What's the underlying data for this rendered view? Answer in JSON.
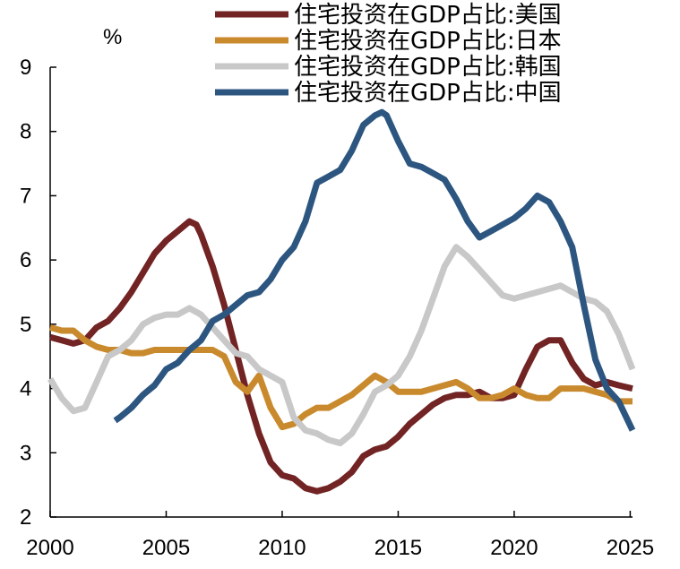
{
  "chart_data": {
    "type": "line",
    "unit": "%",
    "xlim": [
      2000,
      2025.1
    ],
    "ylim": [
      2,
      9
    ],
    "x_ticks": [
      2000,
      2005,
      2010,
      2015,
      2020,
      2025
    ],
    "y_ticks": [
      2,
      3,
      4,
      5,
      6,
      7,
      8,
      9
    ],
    "x_tick_labels": [
      "2000",
      "2005",
      "2010",
      "2015",
      "2020",
      "2025"
    ],
    "y_tick_labels": [
      "2",
      "3",
      "4",
      "5",
      "6",
      "7",
      "8",
      "9"
    ],
    "grid": false,
    "legend_position": "top",
    "series": [
      {
        "name": "住宅投资在GDP占比:美国",
        "color": "#722323",
        "x": [
          2000.0,
          2000.5,
          2001.0,
          2001.5,
          2002.0,
          2002.5,
          2003.0,
          2003.5,
          2004.0,
          2004.5,
          2005.0,
          2005.5,
          2006.0,
          2006.3,
          2006.5,
          2007.0,
          2007.5,
          2008.0,
          2008.5,
          2009.0,
          2009.5,
          2010.0,
          2010.5,
          2011.0,
          2011.5,
          2012.0,
          2012.5,
          2013.0,
          2013.5,
          2014.0,
          2014.5,
          2015.0,
          2015.5,
          2016.0,
          2016.5,
          2017.0,
          2017.5,
          2018.0,
          2018.5,
          2019.0,
          2019.5,
          2020.0,
          2020.5,
          2021.0,
          2021.5,
          2022.0,
          2022.5,
          2023.0,
          2023.5,
          2024.0,
          2024.5,
          2025.1
        ],
        "y": [
          4.8,
          4.75,
          4.7,
          4.75,
          4.95,
          5.05,
          5.25,
          5.5,
          5.8,
          6.1,
          6.3,
          6.45,
          6.6,
          6.55,
          6.4,
          5.9,
          5.3,
          4.6,
          3.9,
          3.3,
          2.85,
          2.65,
          2.6,
          2.45,
          2.4,
          2.45,
          2.55,
          2.7,
          2.95,
          3.05,
          3.1,
          3.25,
          3.45,
          3.6,
          3.75,
          3.85,
          3.9,
          3.9,
          3.95,
          3.85,
          3.85,
          3.9,
          4.3,
          4.65,
          4.75,
          4.75,
          4.4,
          4.15,
          4.05,
          4.1,
          4.05,
          4.0
        ]
      },
      {
        "name": "住宅投资在GDP占比:日本",
        "color": "#C98A2E",
        "x": [
          2000.0,
          2000.5,
          2001.0,
          2001.5,
          2002.0,
          2002.5,
          2003.0,
          2003.5,
          2004.0,
          2004.5,
          2005.0,
          2005.5,
          2006.0,
          2006.5,
          2007.0,
          2007.5,
          2008.0,
          2008.5,
          2009.0,
          2009.5,
          2010.0,
          2010.5,
          2011.0,
          2011.5,
          2012.0,
          2012.5,
          2013.0,
          2013.5,
          2014.0,
          2014.5,
          2015.0,
          2015.5,
          2016.0,
          2016.5,
          2017.0,
          2017.5,
          2018.0,
          2018.5,
          2019.0,
          2019.5,
          2020.0,
          2020.5,
          2021.0,
          2021.5,
          2022.0,
          2022.5,
          2023.0,
          2023.5,
          2024.0,
          2024.5,
          2025.1
        ],
        "y": [
          4.95,
          4.9,
          4.9,
          4.75,
          4.65,
          4.6,
          4.6,
          4.55,
          4.55,
          4.6,
          4.6,
          4.6,
          4.6,
          4.6,
          4.6,
          4.5,
          4.1,
          3.95,
          4.2,
          3.7,
          3.4,
          3.45,
          3.6,
          3.7,
          3.7,
          3.8,
          3.9,
          4.05,
          4.2,
          4.1,
          3.95,
          3.95,
          3.95,
          4.0,
          4.05,
          4.1,
          4.0,
          3.85,
          3.85,
          3.9,
          4.0,
          3.9,
          3.85,
          3.85,
          4.0,
          4.0,
          4.0,
          3.95,
          3.9,
          3.8,
          3.8
        ]
      },
      {
        "name": "住宅投资在GDP占比:韩国",
        "color": "#C8C8C8",
        "x": [
          2000.0,
          2000.5,
          2001.0,
          2001.5,
          2002.0,
          2002.5,
          2003.0,
          2003.5,
          2004.0,
          2004.5,
          2005.0,
          2005.5,
          2006.0,
          2006.5,
          2007.0,
          2007.5,
          2008.0,
          2008.5,
          2009.0,
          2009.5,
          2010.0,
          2010.5,
          2011.0,
          2011.5,
          2012.0,
          2012.5,
          2013.0,
          2013.5,
          2014.0,
          2014.5,
          2015.0,
          2015.5,
          2016.0,
          2016.5,
          2017.0,
          2017.5,
          2018.0,
          2018.5,
          2019.0,
          2019.5,
          2020.0,
          2020.5,
          2021.0,
          2021.5,
          2022.0,
          2022.5,
          2023.0,
          2023.5,
          2024.0,
          2024.5,
          2025.1
        ],
        "y": [
          4.15,
          3.85,
          3.65,
          3.7,
          4.1,
          4.5,
          4.6,
          4.75,
          5.0,
          5.1,
          5.15,
          5.15,
          5.25,
          5.15,
          4.95,
          4.75,
          4.55,
          4.5,
          4.3,
          4.2,
          4.1,
          3.55,
          3.35,
          3.3,
          3.2,
          3.15,
          3.3,
          3.6,
          3.95,
          4.05,
          4.2,
          4.5,
          4.9,
          5.4,
          5.9,
          6.2,
          6.05,
          5.85,
          5.65,
          5.45,
          5.4,
          5.45,
          5.5,
          5.55,
          5.6,
          5.5,
          5.4,
          5.35,
          5.2,
          4.85,
          4.3
        ]
      },
      {
        "name": "住宅投资在GDP占比:中国",
        "color": "#2C5680",
        "x": [
          2002.8,
          2003.0,
          2003.5,
          2004.0,
          2004.5,
          2005.0,
          2005.5,
          2006.0,
          2006.5,
          2007.0,
          2007.5,
          2008.0,
          2008.5,
          2009.0,
          2009.5,
          2010.0,
          2010.5,
          2011.0,
          2011.5,
          2012.0,
          2012.5,
          2013.0,
          2013.5,
          2014.0,
          2014.3,
          2014.5,
          2015.0,
          2015.5,
          2016.0,
          2016.5,
          2017.0,
          2017.5,
          2018.0,
          2018.5,
          2019.0,
          2019.5,
          2020.0,
          2020.5,
          2021.0,
          2021.5,
          2022.0,
          2022.5,
          2023.0,
          2023.5,
          2024.0,
          2024.5,
          2025.1
        ],
        "y": [
          3.5,
          3.55,
          3.7,
          3.9,
          4.05,
          4.3,
          4.4,
          4.6,
          4.75,
          5.05,
          5.15,
          5.3,
          5.45,
          5.5,
          5.7,
          6.0,
          6.2,
          6.6,
          7.2,
          7.3,
          7.4,
          7.7,
          8.1,
          8.25,
          8.3,
          8.25,
          7.85,
          7.5,
          7.45,
          7.35,
          7.25,
          6.95,
          6.6,
          6.35,
          6.45,
          6.55,
          6.65,
          6.8,
          7.0,
          6.9,
          6.6,
          6.2,
          5.3,
          4.45,
          4.0,
          3.8,
          3.35
        ]
      }
    ]
  }
}
